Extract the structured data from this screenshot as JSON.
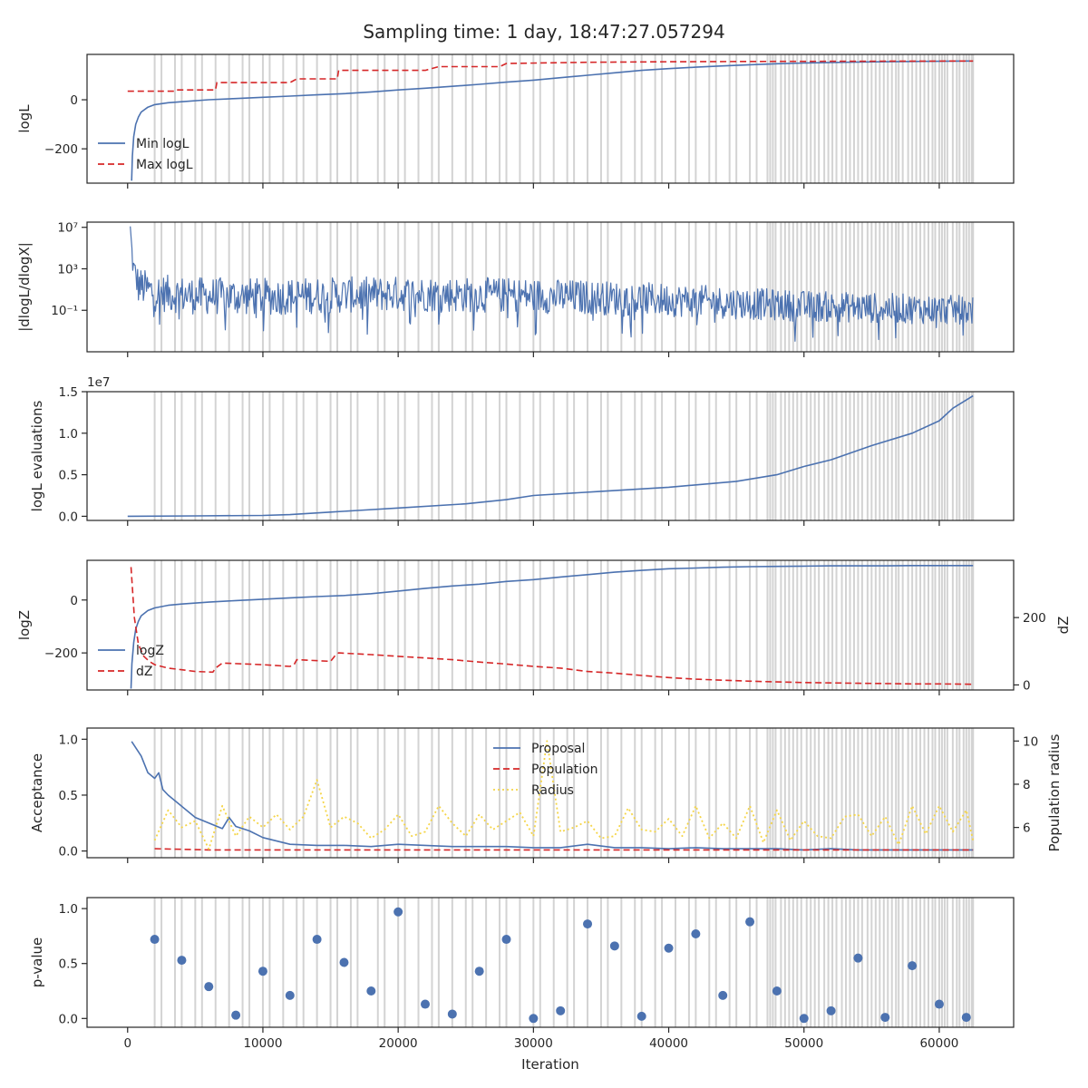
{
  "title": "Sampling time: 1 day, 18:47:27.057294",
  "colors": {
    "blue": "#4c72b0",
    "red": "#d62728",
    "yellow": "#f5d547",
    "grey_band": "#d3d3d3",
    "axes": "#262626"
  },
  "chart_data": [
    {
      "type": "line",
      "ylabel": "logL",
      "xlim": [
        -3000,
        65500
      ],
      "ylim": [
        -340,
        185
      ],
      "yticks": [
        0,
        -200
      ],
      "ytick_labels": [
        "0",
        "−200"
      ],
      "legend_position": "lower-left",
      "series": [
        {
          "name": "Min logL",
          "color": "#4c72b0",
          "style": "solid",
          "x": [
            300,
            350,
            450,
            600,
            800,
            1000,
            1500,
            2000,
            3000,
            4000,
            6000,
            8000,
            10000,
            12000,
            14000,
            16000,
            18000,
            20000,
            22000,
            24000,
            26000,
            28000,
            30000,
            32000,
            34000,
            36000,
            38000,
            40000,
            42000,
            44000,
            46000,
            48000,
            50000,
            52000,
            54000,
            56000,
            58000,
            60000,
            62000,
            62500
          ],
          "y": [
            -330,
            -230,
            -150,
            -100,
            -70,
            -50,
            -30,
            -20,
            -12,
            -8,
            0,
            5,
            10,
            15,
            20,
            25,
            32,
            40,
            47,
            55,
            63,
            72,
            80,
            90,
            100,
            110,
            120,
            127,
            133,
            138,
            143,
            147,
            150,
            152,
            154,
            155,
            156,
            157,
            158,
            158
          ]
        },
        {
          "name": "Max logL",
          "color": "#d62728",
          "style": "dashed",
          "x": [
            0,
            3500,
            3600,
            6500,
            6600,
            12000,
            12500,
            15500,
            15600,
            22000,
            23000,
            27500,
            28000,
            34000,
            40000,
            46000,
            52000,
            62500
          ],
          "y": [
            35,
            35,
            40,
            40,
            70,
            70,
            85,
            85,
            120,
            120,
            135,
            135,
            148,
            153,
            155,
            156,
            157,
            158
          ]
        }
      ]
    },
    {
      "type": "line",
      "ylabel": "|dlogL/dlogX|",
      "scale": "log",
      "ylim_log10": [
        -5,
        7.5
      ],
      "ytick_labels": [
        "10⁷",
        "10³",
        "10⁻¹"
      ],
      "ytick_values_log10": [
        7,
        3,
        -1
      ],
      "series": [
        {
          "name": "",
          "color": "#4c72b0",
          "style": "solid",
          "x": [
            200,
            400,
            800,
            2000,
            5000,
            10000,
            20000,
            30000,
            40000,
            50000,
            62500
          ],
          "y_log10_centre": [
            7.0,
            3.2,
            1.4,
            0.7,
            0.4,
            0.3,
            0.6,
            0.4,
            0.0,
            -0.6,
            -1.0
          ],
          "y_log10_spread": [
            0.3,
            1.2,
            1.8,
            1.8,
            1.8,
            1.8,
            1.7,
            1.7,
            1.6,
            1.5,
            1.4
          ]
        }
      ]
    },
    {
      "type": "line",
      "ylabel": "logL evaluations",
      "offset_label": "1e7",
      "ylim": [
        -0.05,
        1.5
      ],
      "yticks": [
        0.0,
        0.5,
        1.0,
        1.5
      ],
      "ytick_labels": [
        "0.0",
        "0.5",
        "1.0",
        "1.5"
      ],
      "series": [
        {
          "name": "",
          "color": "#4c72b0",
          "style": "solid",
          "x": [
            0,
            5000,
            10000,
            12000,
            15000,
            17000,
            20000,
            25000,
            28000,
            30000,
            35000,
            40000,
            45000,
            48000,
            50000,
            52000,
            55000,
            58000,
            60000,
            61000,
            62500
          ],
          "y": [
            0.0,
            0.005,
            0.01,
            0.02,
            0.05,
            0.07,
            0.1,
            0.15,
            0.2,
            0.25,
            0.3,
            0.35,
            0.42,
            0.5,
            0.6,
            0.68,
            0.85,
            1.0,
            1.15,
            1.3,
            1.45
          ]
        }
      ]
    },
    {
      "type": "line",
      "ylabel": "logZ",
      "ylabel_right": "dZ",
      "ylim": [
        -340,
        150
      ],
      "yticks": [
        0,
        -200
      ],
      "ytick_labels": [
        "0",
        "−200"
      ],
      "ylim_right": [
        -15,
        370
      ],
      "yticks_right": [
        200,
        0
      ],
      "ytick_labels_right": [
        "200",
        "0"
      ],
      "legend_position": "lower-left",
      "series": [
        {
          "name": "logZ",
          "color": "#4c72b0",
          "style": "solid",
          "axis": "left",
          "x": [
            250,
            320,
            450,
            600,
            800,
            1000,
            1500,
            2000,
            3000,
            4000,
            6000,
            8000,
            10000,
            12000,
            14000,
            16000,
            18000,
            20000,
            22000,
            24000,
            26000,
            28000,
            30000,
            32000,
            34000,
            36000,
            38000,
            40000,
            42000,
            44000,
            46000,
            48000,
            50000,
            52000,
            54000,
            56000,
            58000,
            60000,
            62000,
            62500
          ],
          "y": [
            -335,
            -240,
            -160,
            -110,
            -80,
            -60,
            -40,
            -30,
            -20,
            -15,
            -8,
            -2,
            3,
            8,
            13,
            17,
            24,
            34,
            44,
            53,
            60,
            70,
            77,
            87,
            96,
            105,
            112,
            118,
            121,
            124,
            126,
            127,
            128,
            129,
            129,
            129,
            130,
            130,
            130,
            130
          ]
        },
        {
          "name": "dZ",
          "color": "#d62728",
          "style": "dashed",
          "axis": "right",
          "x": [
            250,
            500,
            800,
            1200,
            1600,
            2000,
            3000,
            4000,
            5000,
            6300,
            6500,
            7000,
            10000,
            12000,
            12300,
            12500,
            15000,
            15400,
            15600,
            18000,
            20000,
            22000,
            24000,
            26000,
            28000,
            30000,
            32000,
            34000,
            36000,
            38000,
            40000,
            42000,
            44000,
            46000,
            48000,
            50000,
            52000,
            54000,
            56000,
            58000,
            60000,
            62500
          ],
          "y": [
            350,
            200,
            120,
            85,
            70,
            60,
            50,
            45,
            40,
            38,
            50,
            65,
            60,
            55,
            60,
            75,
            70,
            90,
            95,
            90,
            85,
            80,
            75,
            68,
            62,
            55,
            50,
            40,
            35,
            28,
            22,
            17,
            14,
            11,
            9,
            7,
            6,
            5,
            4,
            3,
            3,
            2
          ]
        }
      ]
    },
    {
      "type": "line",
      "ylabel": "Acceptance",
      "ylabel_right": "Population radius",
      "ylim": [
        -0.06,
        1.1
      ],
      "yticks": [
        0.0,
        0.5,
        1.0
      ],
      "ytick_labels": [
        "0.0",
        "0.5",
        "1.0"
      ],
      "ylim_right": [
        4.6,
        10.6
      ],
      "yticks_right": [
        6,
        8,
        10
      ],
      "ytick_labels_right": [
        "6",
        "8",
        "10"
      ],
      "legend_position": "upper-center",
      "series": [
        {
          "name": "Proposal",
          "color": "#4c72b0",
          "style": "solid",
          "axis": "left",
          "x": [
            300,
            1000,
            1500,
            2000,
            2300,
            2600,
            3000,
            4000,
            5000,
            6000,
            7000,
            7500,
            8000,
            9000,
            10000,
            12000,
            14000,
            16000,
            18000,
            20000,
            22000,
            24000,
            26000,
            28000,
            30000,
            32000,
            34000,
            36000,
            38000,
            40000,
            42000,
            44000,
            46000,
            48000,
            50000,
            52000,
            54000,
            56000,
            58000,
            60000,
            62500
          ],
          "y": [
            0.98,
            0.85,
            0.7,
            0.65,
            0.7,
            0.55,
            0.5,
            0.4,
            0.3,
            0.25,
            0.2,
            0.3,
            0.22,
            0.18,
            0.12,
            0.06,
            0.05,
            0.05,
            0.04,
            0.06,
            0.05,
            0.04,
            0.04,
            0.04,
            0.03,
            0.03,
            0.06,
            0.03,
            0.03,
            0.02,
            0.03,
            0.02,
            0.02,
            0.02,
            0.01,
            0.02,
            0.01,
            0.01,
            0.01,
            0.01,
            0.01
          ]
        },
        {
          "name": "Population",
          "color": "#d62728",
          "style": "dashed",
          "axis": "left",
          "x": [
            2000,
            6000,
            20000,
            40000,
            62500
          ],
          "y": [
            0.02,
            0.01,
            0.01,
            0.01,
            0.01
          ]
        },
        {
          "name": "Radius",
          "color": "#f5d547",
          "style": "dotted",
          "axis": "right",
          "x": [
            2000,
            3000,
            4000,
            5000,
            6000,
            7000,
            8000,
            9000,
            10000,
            11000,
            12000,
            13000,
            14000,
            15000,
            16000,
            17000,
            18000,
            19000,
            20000,
            21000,
            22000,
            23000,
            24000,
            25000,
            26000,
            27000,
            28000,
            29000,
            30000,
            31000,
            32000,
            33000,
            34000,
            35000,
            36000,
            37000,
            38000,
            39000,
            40000,
            41000,
            42000,
            43000,
            44000,
            45000,
            46000,
            47000,
            48000,
            49000,
            50000,
            51000,
            52000,
            53000,
            54000,
            55000,
            56000,
            57000,
            58000,
            59000,
            60000,
            61000,
            62000,
            62500
          ],
          "y": [
            5.4,
            6.8,
            6.0,
            6.3,
            5.0,
            7.0,
            5.6,
            6.5,
            6.0,
            6.6,
            5.9,
            6.5,
            8.2,
            6.0,
            6.5,
            6.2,
            5.5,
            5.9,
            6.6,
            5.6,
            5.8,
            7.0,
            6.2,
            5.6,
            6.6,
            5.9,
            6.3,
            6.7,
            5.6,
            10.0,
            5.8,
            6.0,
            6.3,
            5.5,
            5.6,
            6.9,
            5.9,
            5.8,
            6.4,
            5.6,
            7.0,
            5.5,
            6.2,
            5.5,
            7.0,
            5.3,
            6.8,
            5.4,
            6.3,
            5.6,
            5.5,
            6.5,
            6.6,
            5.6,
            6.5,
            5.2,
            7.0,
            5.7,
            7.0,
            5.8,
            6.8,
            5.4
          ]
        }
      ]
    },
    {
      "type": "scatter",
      "ylabel": "p-value",
      "xlabel": "Iteration",
      "xlim": [
        -3000,
        65500
      ],
      "ylim": [
        -0.08,
        1.1
      ],
      "yticks": [
        0.0,
        0.5,
        1.0
      ],
      "ytick_labels": [
        "0.0",
        "0.5",
        "1.0"
      ],
      "xticks": [
        0,
        10000,
        20000,
        30000,
        40000,
        50000,
        60000
      ],
      "xtick_labels": [
        "0",
        "10000",
        "20000",
        "30000",
        "40000",
        "50000",
        "60000"
      ],
      "series": [
        {
          "name": "",
          "color": "#4c72b0",
          "x": [
            2000,
            4000,
            6000,
            8000,
            10000,
            12000,
            14000,
            16000,
            18000,
            20000,
            22000,
            24000,
            26000,
            28000,
            30000,
            32000,
            34000,
            36000,
            38000,
            40000,
            42000,
            44000,
            46000,
            48000,
            50000,
            52000,
            54000,
            56000,
            58000,
            60000,
            62000
          ],
          "y": [
            0.72,
            0.53,
            0.29,
            0.03,
            0.43,
            0.21,
            0.72,
            0.51,
            0.25,
            0.97,
            0.13,
            0.04,
            0.43,
            0.72,
            0.0,
            0.07,
            0.86,
            0.66,
            0.02,
            0.64,
            0.77,
            0.21,
            0.88,
            0.25,
            0.0,
            0.07,
            0.55,
            0.01,
            0.48,
            0.13,
            0.01
          ]
        }
      ]
    }
  ],
  "grey_bands_x": [
    2000,
    2500,
    3500,
    4000,
    5000,
    5500,
    6500,
    7500,
    8500,
    9000,
    10000,
    10500,
    11500,
    12500,
    13000,
    14000,
    15000,
    15500,
    16500,
    17000,
    18500,
    19000,
    20000,
    20500,
    21500,
    22500,
    23000,
    24000,
    25000,
    25500,
    26500,
    27500,
    28000,
    29000,
    30000,
    30500,
    31500,
    32500,
    33000,
    34000,
    35000,
    35500,
    36500,
    37500,
    38000,
    39000,
    39500,
    40500,
    41500,
    42000,
    43000,
    43500,
    44500,
    45000,
    46000,
    46500,
    47300,
    47500,
    47700,
    47900,
    48300,
    48600,
    48900,
    49200,
    49500,
    49800,
    50200,
    50500,
    50800,
    51100,
    51500,
    51800,
    52100,
    52400,
    52800,
    53100,
    53400,
    53700,
    54000,
    54300,
    54700,
    55000,
    55300,
    55600,
    55900,
    56200,
    56500,
    56800,
    57000,
    57300,
    57700,
    58000,
    58300,
    58600,
    58900,
    59200,
    59500,
    59700,
    60000,
    60200,
    60400,
    60600,
    61000,
    61300,
    61500,
    61800,
    62000,
    62200,
    62400,
    62500
  ]
}
